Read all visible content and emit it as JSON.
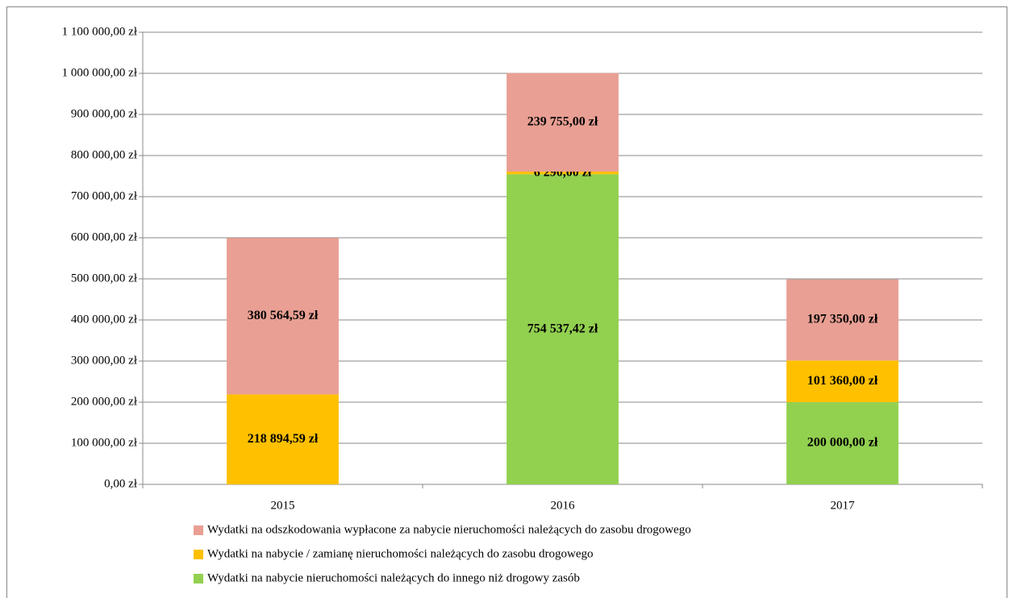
{
  "chart_data": {
    "type": "stacked_bar",
    "categories": [
      "2015",
      "2016",
      "2017"
    ],
    "series": [
      {
        "name": "Wydatki na odszkodowania wypłacone za nabycie nieruchomości należących do zasobu drogowego",
        "color": "#e99f93",
        "values": [
          380564.59,
          239755,
          197350
        ],
        "value_labels": [
          "380 564,59 zł",
          "239 755,00 zł",
          "197 350,00 zł"
        ]
      },
      {
        "name": "Wydatki na nabycie / zamianę nieruchomości należących do zasobu drogowego",
        "color": "#ffc000",
        "values": [
          218894.59,
          6290,
          101360
        ],
        "value_labels": [
          "218 894,59 zł",
          "6 290,00 zł",
          "101 360,00 zł"
        ]
      },
      {
        "name": "Wydatki na nabycie nieruchomości należących do innego niż drogowy zasób",
        "color": "#92d050",
        "values": [
          null,
          754537.42,
          200000
        ],
        "value_labels": [
          null,
          "754 537,42 zł",
          "200 000,00 zł"
        ]
      }
    ],
    "ylim": [
      0,
      1100000
    ],
    "yticks": [
      {
        "value": 0,
        "label": "0,00 zł"
      },
      {
        "value": 100000,
        "label": "100 000,00 zł"
      },
      {
        "value": 200000,
        "label": "200 000,00 zł"
      },
      {
        "value": 300000,
        "label": "300 000,00 zł"
      },
      {
        "value": 400000,
        "label": "400 000,00 zł"
      },
      {
        "value": 500000,
        "label": "500 000,00 zł"
      },
      {
        "value": 600000,
        "label": "600 000,00 zł"
      },
      {
        "value": 700000,
        "label": "700 000,00 zł"
      },
      {
        "value": 800000,
        "label": "800 000,00 zł"
      },
      {
        "value": 900000,
        "label": "900 000,00 zł"
      },
      {
        "value": 1000000,
        "label": "1 000 000,00 zł"
      },
      {
        "value": 1100000,
        "label": "1 100 000,00 zł"
      }
    ],
    "grid": true,
    "legend": "bottom"
  }
}
